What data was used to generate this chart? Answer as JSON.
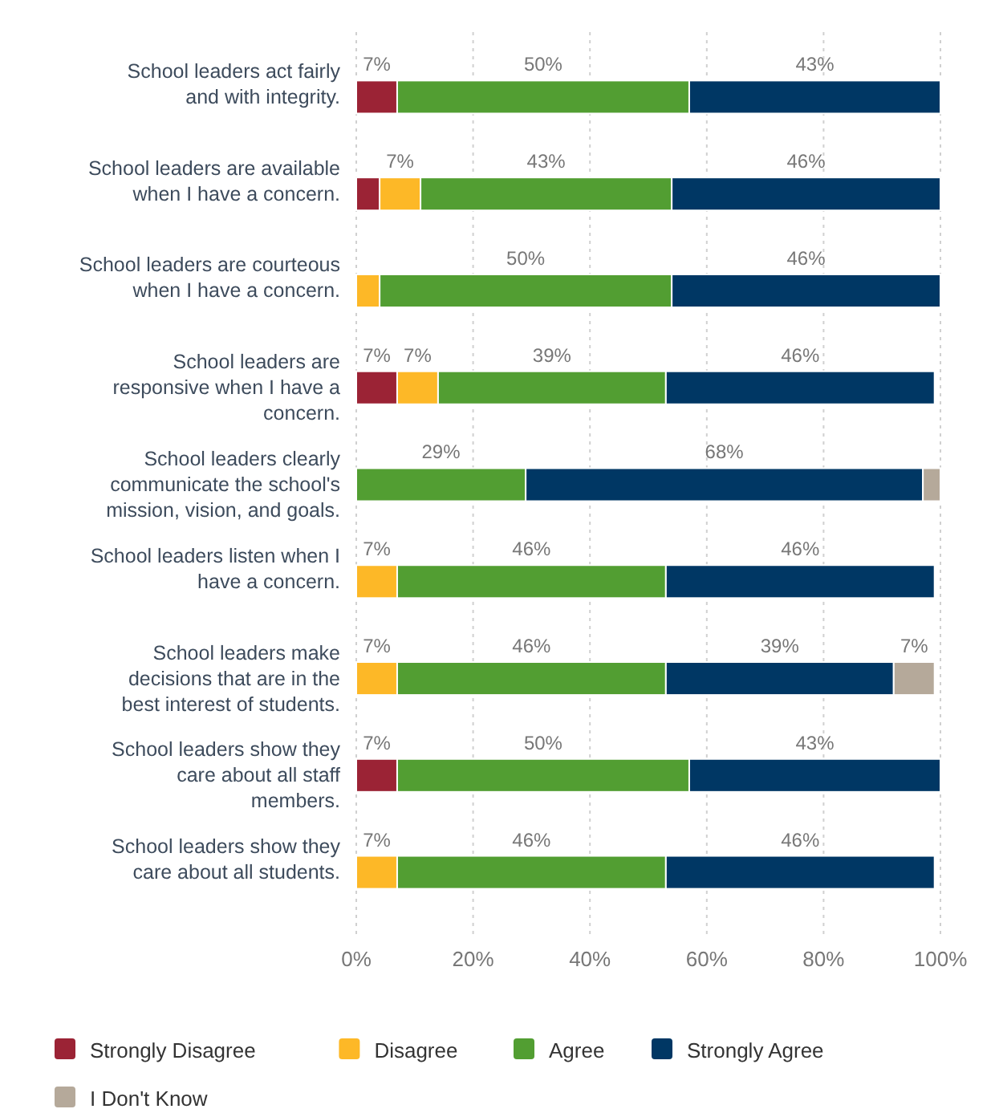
{
  "chart_data": {
    "type": "bar",
    "orientation": "horizontal",
    "stacked": true,
    "categories": [
      "School leaders act fairly and with integrity.",
      "School leaders are available when I have a concern.",
      "School leaders are courteous when I have a concern.",
      "School leaders are responsive when I have a concern.",
      "School leaders clearly communicate the school's mission, vision, and goals.",
      "School leaders listen when I have a concern.",
      "School leaders make decisions that are in the best interest of students.",
      "School leaders show they care about all staff members.",
      "School leaders show they care about all students."
    ],
    "series": [
      {
        "name": "Strongly Disagree",
        "color": "#9b2335",
        "values": [
          7,
          4,
          0,
          7,
          0,
          0,
          0,
          7,
          0
        ],
        "value_labels": [
          "7%",
          null,
          null,
          "7%",
          null,
          null,
          null,
          "7%",
          null
        ]
      },
      {
        "name": "Disagree",
        "color": "#fdb827",
        "values": [
          0,
          7,
          4,
          7,
          0,
          7,
          7,
          0,
          7
        ],
        "value_labels": [
          null,
          "7%",
          null,
          "7%",
          null,
          "7%",
          "7%",
          null,
          "7%"
        ]
      },
      {
        "name": "Agree",
        "color": "#529e32",
        "values": [
          50,
          43,
          50,
          39,
          29,
          46,
          46,
          50,
          46
        ],
        "value_labels": [
          "50%",
          "43%",
          "50%",
          "39%",
          "29%",
          "46%",
          "46%",
          "50%",
          "46%"
        ]
      },
      {
        "name": "Strongly Agree",
        "color": "#003764",
        "values": [
          43,
          46,
          46,
          46,
          68,
          46,
          39,
          43,
          46
        ],
        "value_labels": [
          "43%",
          "46%",
          "46%",
          "46%",
          "68%",
          "46%",
          "39%",
          "43%",
          "46%"
        ]
      },
      {
        "name": "I Don't Know",
        "color": "#b5a99a",
        "values": [
          0,
          0,
          0,
          0,
          3,
          0,
          7,
          0,
          0
        ],
        "value_labels": [
          null,
          null,
          null,
          null,
          null,
          null,
          "7%",
          null,
          null
        ]
      }
    ],
    "xlim": [
      0,
      100
    ],
    "xticks": [
      {
        "value": 0,
        "label": "0%"
      },
      {
        "value": 20,
        "label": "20%"
      },
      {
        "value": 40,
        "label": "40%"
      },
      {
        "value": 60,
        "label": "60%"
      },
      {
        "value": 80,
        "label": "80%"
      },
      {
        "value": 100,
        "label": "100%"
      }
    ],
    "grid": "x",
    "legend": "bottom"
  }
}
